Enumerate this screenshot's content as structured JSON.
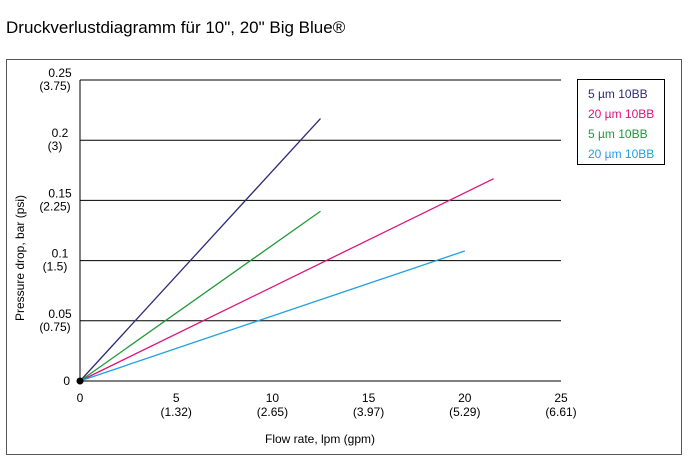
{
  "page": {
    "title": "Druckverlustdiagramm für 10\", 20\" Big Blue®"
  },
  "chart_data": {
    "type": "line",
    "title": "",
    "xlabel": "Flow rate, lpm (gpm)",
    "ylabel": "Pressure drop, bar (psi)",
    "xlim": [
      0,
      25
    ],
    "ylim": [
      0,
      0.25
    ],
    "grid": "horizontal",
    "legend_position": "top-right",
    "x_ticks": [
      {
        "value": 0,
        "label": "0",
        "sublabel": ""
      },
      {
        "value": 5,
        "label": "5",
        "sublabel": "(1.32)"
      },
      {
        "value": 10,
        "label": "10",
        "sublabel": "(2.65)"
      },
      {
        "value": 15,
        "label": "15",
        "sublabel": "(3.97)"
      },
      {
        "value": 20,
        "label": "20",
        "sublabel": "(5.29)"
      },
      {
        "value": 25,
        "label": "25",
        "sublabel": "(6.61)"
      }
    ],
    "y_ticks": [
      {
        "value": 0,
        "label": "0",
        "sublabel": ""
      },
      {
        "value": 0.05,
        "label": "0.05",
        "sublabel": "(0.75)"
      },
      {
        "value": 0.1,
        "label": "0.1",
        "sublabel": "(1.5)"
      },
      {
        "value": 0.15,
        "label": "0.15",
        "sublabel": "(2.25)"
      },
      {
        "value": 0.2,
        "label": "0.2",
        "sublabel": "(3)"
      },
      {
        "value": 0.25,
        "label": "0.25",
        "sublabel": "(3.75)"
      }
    ],
    "series": [
      {
        "name": "5 µm 10BB",
        "color": "#2e2a78",
        "x": [
          0,
          12.5
        ],
        "y": [
          0,
          0.218
        ]
      },
      {
        "name": "20 µm 10BB",
        "color": "#e0137a",
        "x": [
          0,
          21.5
        ],
        "y": [
          0,
          0.168
        ]
      },
      {
        "name": "5 µm 10BB",
        "color": "#1f9a3a",
        "x": [
          0,
          12.5
        ],
        "y": [
          0,
          0.141
        ]
      },
      {
        "name": "20 µm 10BB",
        "color": "#1fa0e0",
        "x": [
          0,
          20
        ],
        "y": [
          0,
          0.108
        ]
      }
    ]
  }
}
